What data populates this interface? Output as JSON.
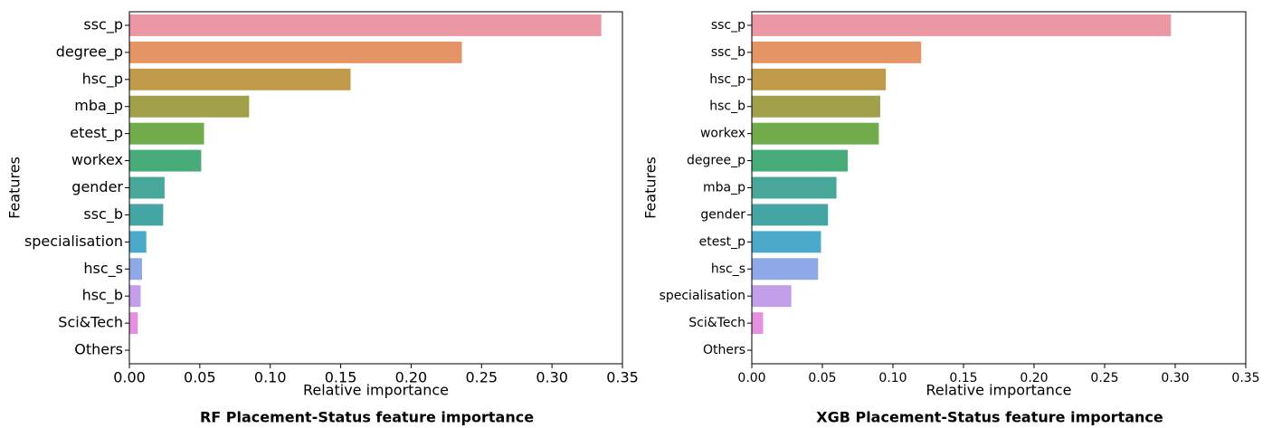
{
  "chart_data": [
    {
      "type": "barh",
      "title": "RF Placement-Status feature importance",
      "xlabel": "Relative importance",
      "ylabel": "Features",
      "categories": [
        "ssc_p",
        "degree_p",
        "hsc_p",
        "mba_p",
        "etest_p",
        "workex",
        "gender",
        "ssc_b",
        "specialisation",
        "hsc_s",
        "hsc_b",
        "Sci&Tech",
        "Others"
      ],
      "values": [
        0.335,
        0.236,
        0.157,
        0.085,
        0.053,
        0.051,
        0.025,
        0.024,
        0.012,
        0.009,
        0.008,
        0.006,
        0
      ],
      "colors": [
        "#eb97a4",
        "#e49465",
        "#bf9b4a",
        "#a1a04b",
        "#72ab4c",
        "#48ab7a",
        "#47a89a",
        "#45a5a5",
        "#4aa8c8",
        "#8fa9e8",
        "#c29fe8",
        "#e591e0",
        "#ea8fc3"
      ],
      "xlim": [
        0,
        0.35
      ],
      "xticks": [
        {
          "value": 0,
          "label": "0.00"
        },
        {
          "value": 0.05,
          "label": "0.05"
        },
        {
          "value": 0.1,
          "label": "0.10"
        },
        {
          "value": 0.15,
          "label": "0.15"
        },
        {
          "value": 0.2,
          "label": "0.20"
        },
        {
          "value": 0.25,
          "label": "0.25"
        },
        {
          "value": 0.3,
          "label": "0.30"
        },
        {
          "value": 0.35,
          "label": "0.35"
        }
      ]
    },
    {
      "type": "barh",
      "title": "XGB Placement-Status feature importance",
      "xlabel": "Relative importance",
      "ylabel": "Features",
      "categories": [
        "ssc_p",
        "ssc_b",
        "hsc_p",
        "hsc_b",
        "workex",
        "degree_p",
        "mba_p",
        "gender",
        "etest_p",
        "hsc_s",
        "specialisation",
        "Sci&Tech",
        "Others"
      ],
      "values": [
        0.297,
        0.12,
        0.095,
        0.091,
        0.09,
        0.068,
        0.06,
        0.054,
        0.049,
        0.047,
        0.028,
        0.008,
        0
      ],
      "colors": [
        "#eb97a4",
        "#e49465",
        "#bf9b4a",
        "#a1a04b",
        "#72ab4c",
        "#48ab7a",
        "#47a89a",
        "#45a5a5",
        "#4aa8c8",
        "#8fa9e8",
        "#c29fe8",
        "#e591e0",
        "#ea8fc3"
      ],
      "xlim": [
        0,
        0.35
      ],
      "xticks": [
        {
          "value": 0,
          "label": "0.00"
        },
        {
          "value": 0.05,
          "label": "0.05"
        },
        {
          "value": 0.1,
          "label": "0.10"
        },
        {
          "value": 0.15,
          "label": "0.15"
        },
        {
          "value": 0.2,
          "label": "0.20"
        },
        {
          "value": 0.25,
          "label": "0.25"
        },
        {
          "value": 0.3,
          "label": "0.30"
        },
        {
          "value": 0.35,
          "label": "0.35"
        }
      ]
    }
  ]
}
